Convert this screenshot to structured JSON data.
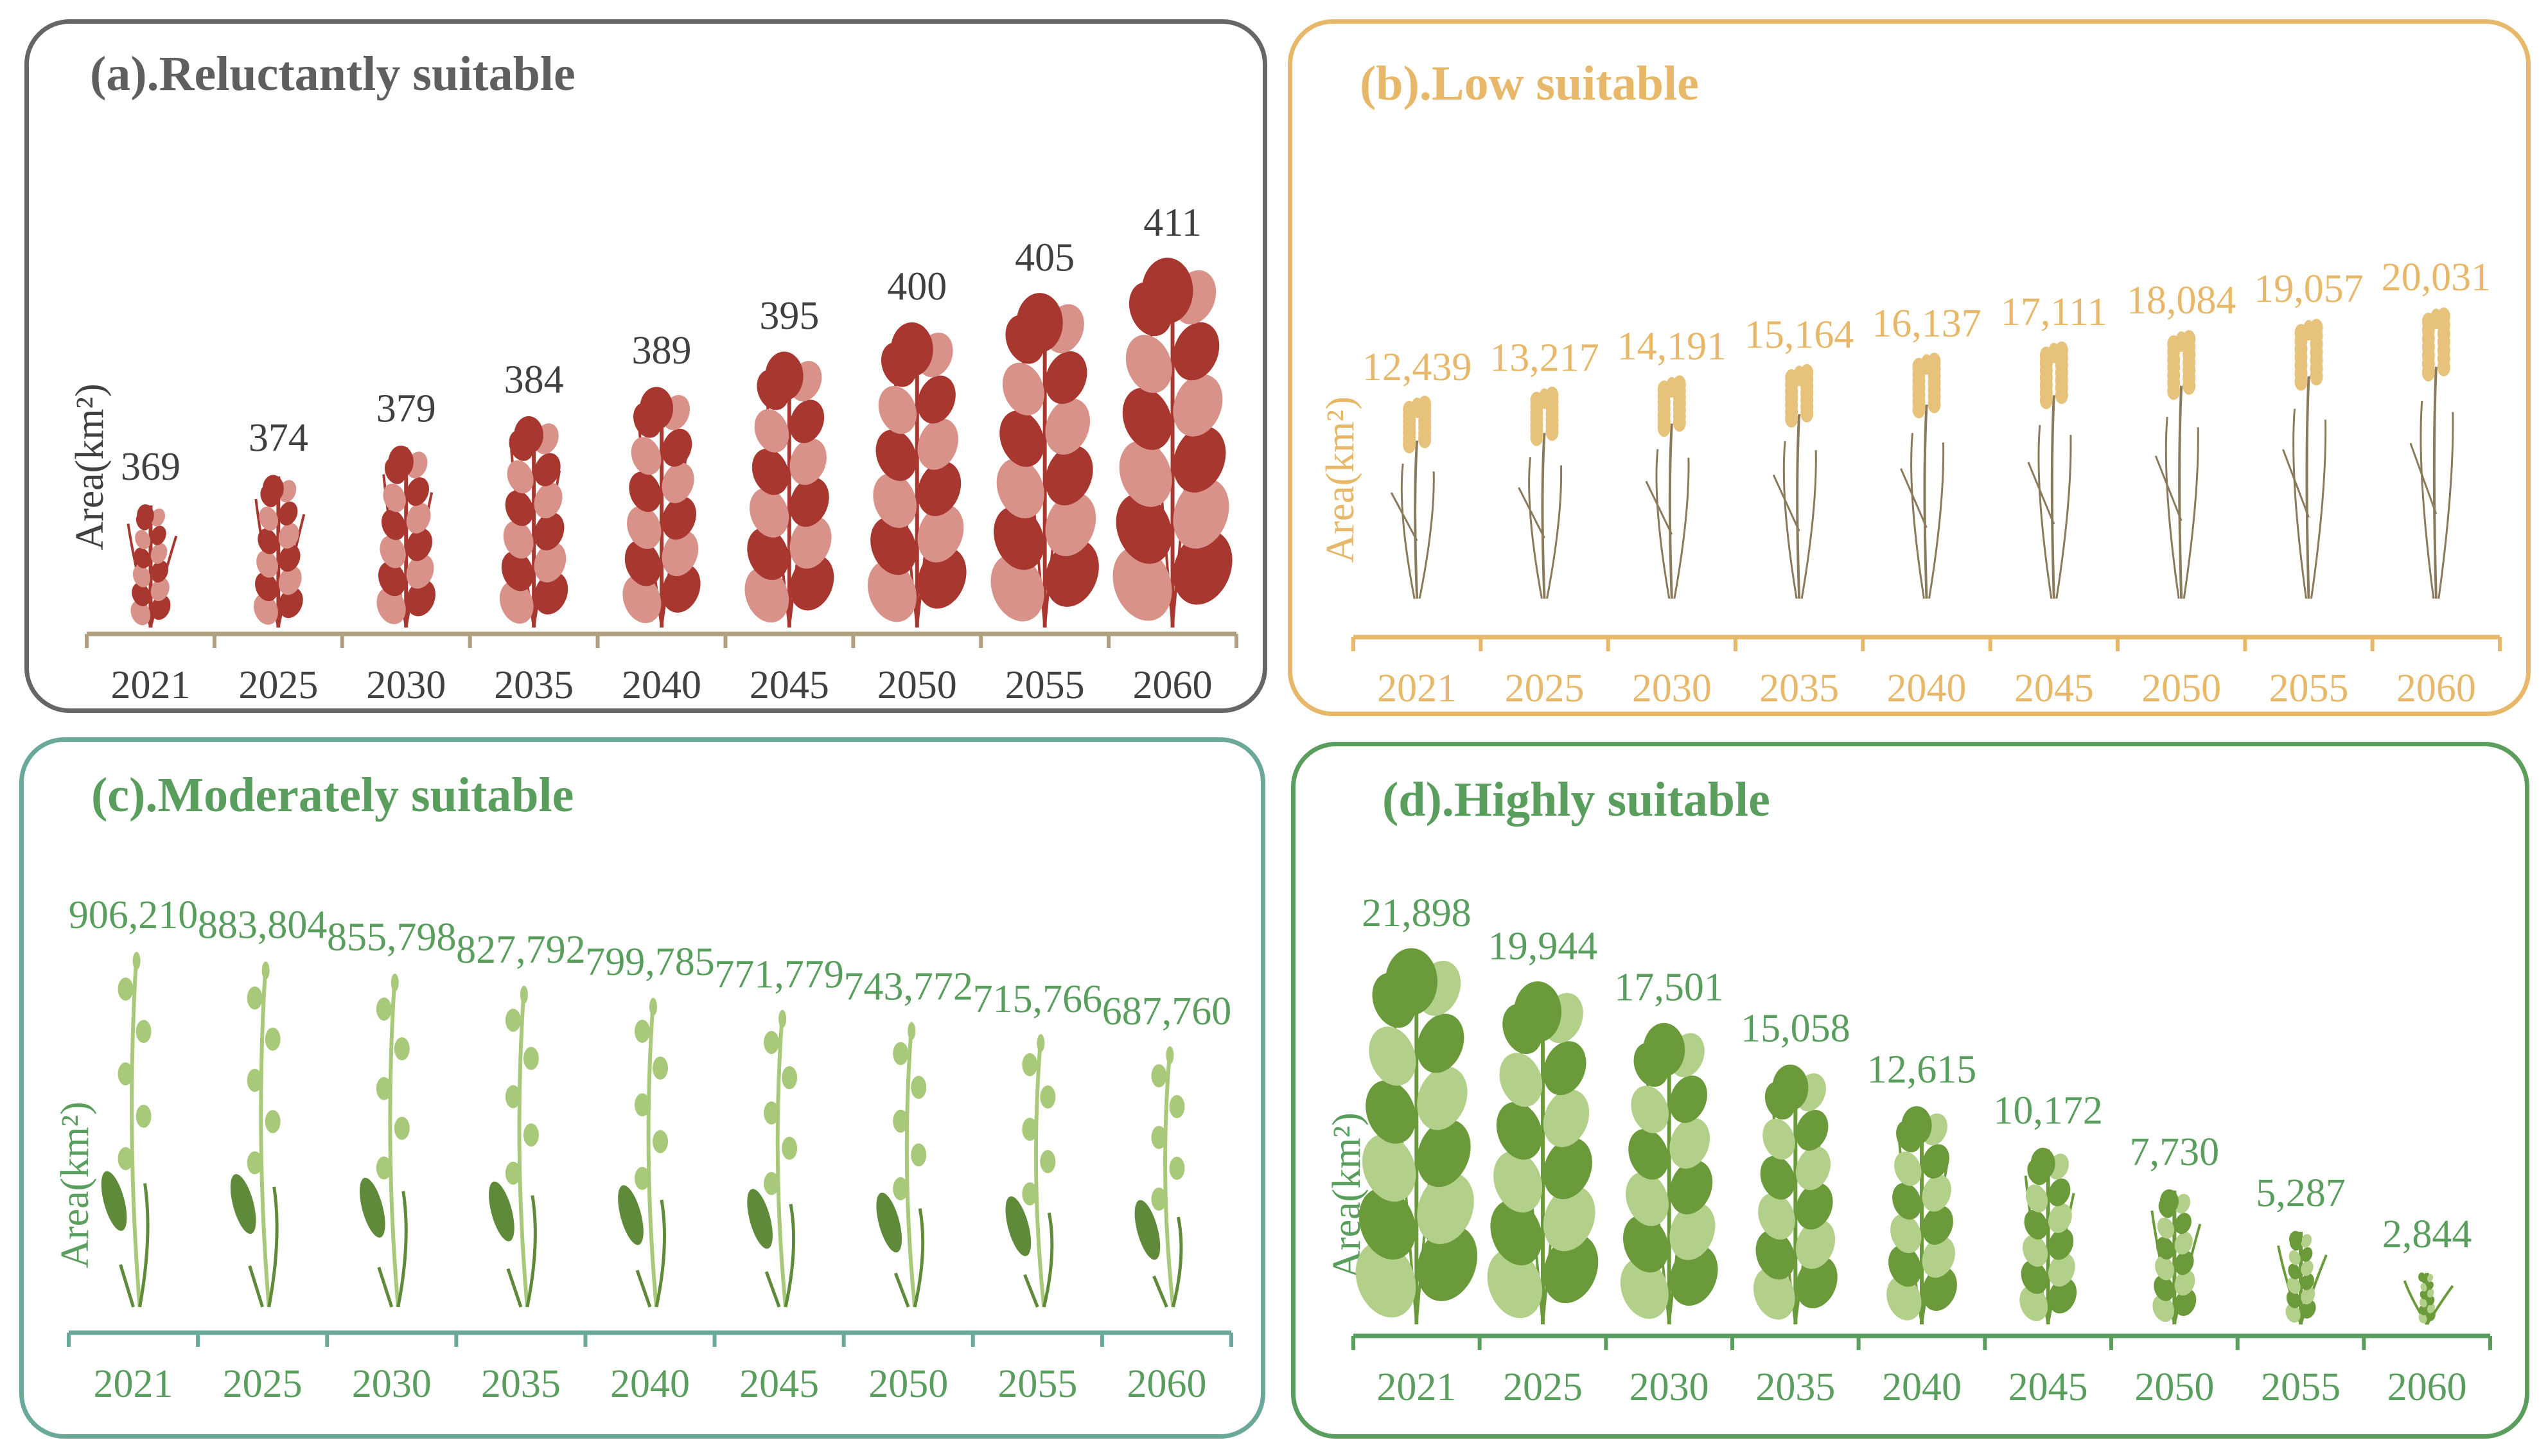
{
  "chart_data": [
    {
      "type": "bar",
      "title": "(a).Reluctantly suitable",
      "ylabel": "Area(km²)",
      "categories": [
        "2021",
        "2025",
        "2030",
        "2035",
        "2040",
        "2045",
        "2050",
        "2055",
        "2060"
      ],
      "values": [
        369,
        374,
        379,
        384,
        389,
        395,
        400,
        405,
        411
      ],
      "labels": [
        "369",
        "374",
        "379",
        "384",
        "389",
        "395",
        "400",
        "405",
        "411"
      ],
      "colors": {
        "border": "#666666",
        "title": "#5f5f5f",
        "text": "#404040",
        "axis": "#b0a080",
        "plant": "#a8382f",
        "plant_light": "#d9928a"
      },
      "plant": "fern"
    },
    {
      "type": "bar",
      "title": "(b).Low suitable",
      "ylabel": "Area(km²)",
      "categories": [
        "2021",
        "2025",
        "2030",
        "2035",
        "2040",
        "2045",
        "2050",
        "2055",
        "2060"
      ],
      "values": [
        12439,
        13217,
        14191,
        15164,
        16137,
        17111,
        18084,
        19057,
        20031
      ],
      "labels": [
        "12,439",
        "13,217",
        "14,191",
        "15,164",
        "16,137",
        "17,111",
        "18,084",
        "19,057",
        "20,031"
      ],
      "colors": {
        "border": "#e8b86a",
        "title": "#e8b86a",
        "text": "#e8b86a",
        "axis": "#e8b86a",
        "plant": "#8a7a5c",
        "plant_light": "#e6c27a"
      },
      "plant": "wheat"
    },
    {
      "type": "bar",
      "title": "(c).Moderately suitable",
      "ylabel": "Area(km²)",
      "categories": [
        "2021",
        "2025",
        "2030",
        "2035",
        "2040",
        "2045",
        "2050",
        "2055",
        "2060"
      ],
      "values": [
        906210,
        883804,
        855798,
        827792,
        799785,
        771779,
        743772,
        715766,
        687760
      ],
      "labels": [
        "906,210",
        "883,804",
        "855,798",
        "827,792",
        "799,785",
        "771,779",
        "743,772",
        "715,766",
        "687,760"
      ],
      "colors": {
        "border": "#6aa89a",
        "title": "#5a9e5e",
        "text": "#5a9e5e",
        "axis": "#6aa89a",
        "plant": "#5f8a3a",
        "plant_light": "#a9c97a"
      },
      "plant": "vine"
    },
    {
      "type": "bar",
      "title": "(d).Highly suitable",
      "ylabel": "Area(km²)",
      "categories": [
        "2021",
        "2025",
        "2030",
        "2035",
        "2040",
        "2045",
        "2050",
        "2055",
        "2060"
      ],
      "values": [
        21898,
        19944,
        17501,
        15058,
        12615,
        10172,
        7730,
        5287,
        2844
      ],
      "labels": [
        "21,898",
        "19,944",
        "17,501",
        "15,058",
        "12,615",
        "10,172",
        "7,730",
        "5,287",
        "2,844"
      ],
      "colors": {
        "border": "#5a9e5e",
        "title": "#5a9e5e",
        "text": "#5a9e5e",
        "axis": "#5a9e5e",
        "plant": "#6a9a3a",
        "plant_light": "#b2d08a"
      },
      "plant": "fern"
    }
  ]
}
